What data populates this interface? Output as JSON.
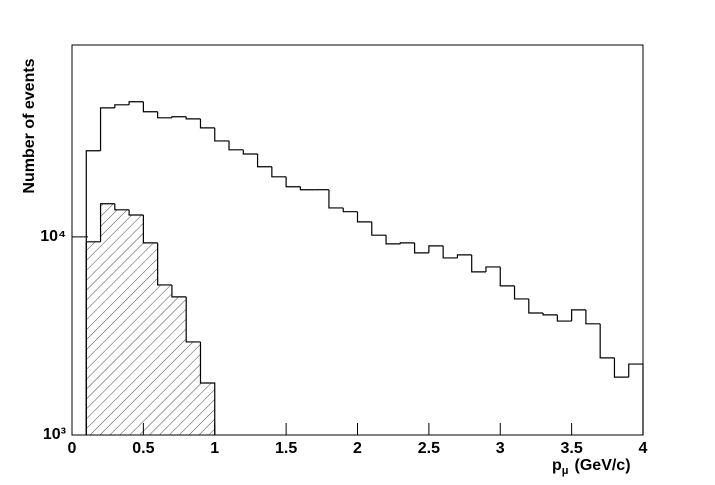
{
  "chart_data": {
    "type": "histogram",
    "y_label": "Number of events",
    "x_label": {
      "symbol": "p",
      "subscript": "μ",
      "unit": "(GeV/c)"
    },
    "log_y": true,
    "xlim": [
      0,
      4
    ],
    "xticks": [
      0,
      0.5,
      1,
      1.5,
      2,
      2.5,
      3,
      3.5,
      4
    ],
    "ylim": [
      1000,
      93000
    ],
    "yticks": [
      {
        "value": 1000,
        "label": "10³"
      },
      {
        "value": 10000,
        "label": "10⁴"
      }
    ],
    "series": [
      {
        "color": "#000000",
        "fill": "none",
        "bins": [
          0.1,
          0.2,
          0.3,
          0.4,
          0.5,
          0.6,
          0.7,
          0.8,
          0.9,
          1.0,
          1.1,
          1.2,
          1.3,
          1.4,
          1.5,
          1.6,
          1.7,
          1.8,
          1.9,
          2.0,
          2.1,
          2.2,
          2.3,
          2.4,
          2.5,
          2.6,
          2.7,
          2.8,
          2.9,
          3.0,
          3.1,
          3.2,
          3.3,
          3.4,
          3.5,
          3.6,
          3.7,
          3.8,
          3.9,
          4.0
        ],
        "values": [
          27200,
          44800,
          46400,
          48100,
          42800,
          39900,
          40400,
          39400,
          35500,
          30500,
          27500,
          26200,
          22600,
          20100,
          17900,
          17300,
          17300,
          14000,
          13400,
          11900,
          10200,
          9220,
          9330,
          8300,
          9010,
          7830,
          8110,
          6660,
          7050,
          5660,
          4860,
          4130,
          4040,
          3760,
          4280,
          3640,
          2450,
          1960,
          2280
        ]
      },
      {
        "color": "#000000",
        "fill": "hatch",
        "bins": [
          0.1,
          0.2,
          0.3,
          0.4,
          0.5,
          0.6,
          0.7,
          0.8,
          0.9,
          1.0
        ],
        "values": [
          9440,
          14700,
          13700,
          12900,
          9330,
          5720,
          4980,
          2950,
          1830
        ]
      }
    ]
  }
}
